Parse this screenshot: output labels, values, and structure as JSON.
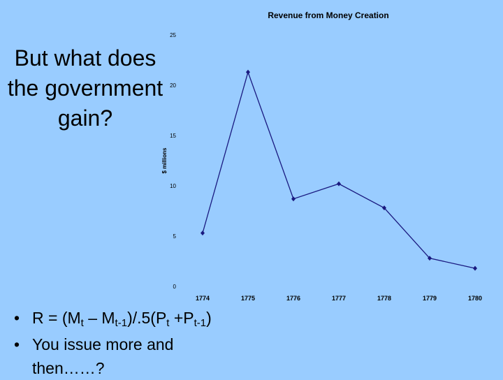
{
  "slide_title": "But what does the government gain?",
  "bullets": [
    {
      "parts": [
        "R = (M",
        "t",
        " – M",
        "t-1",
        ")/.5(P",
        "t",
        " +P",
        "t-1",
        ")"
      ]
    },
    {
      "parts": [
        "You issue more and then……?"
      ]
    }
  ],
  "chart_data": {
    "type": "line",
    "title": "Revenue from Money Creation",
    "y_label": "$ millions",
    "categories": [
      "1774",
      "1775",
      "1776",
      "1777",
      "1778",
      "1779",
      "1780"
    ],
    "values": [
      5.3,
      21.3,
      8.7,
      10.2,
      7.8,
      2.8,
      1.8
    ],
    "color": "#1a1a80",
    "ylim": [
      0,
      25
    ],
    "yticks": [
      0,
      5,
      10,
      15,
      20,
      25
    ],
    "grid": false
  }
}
